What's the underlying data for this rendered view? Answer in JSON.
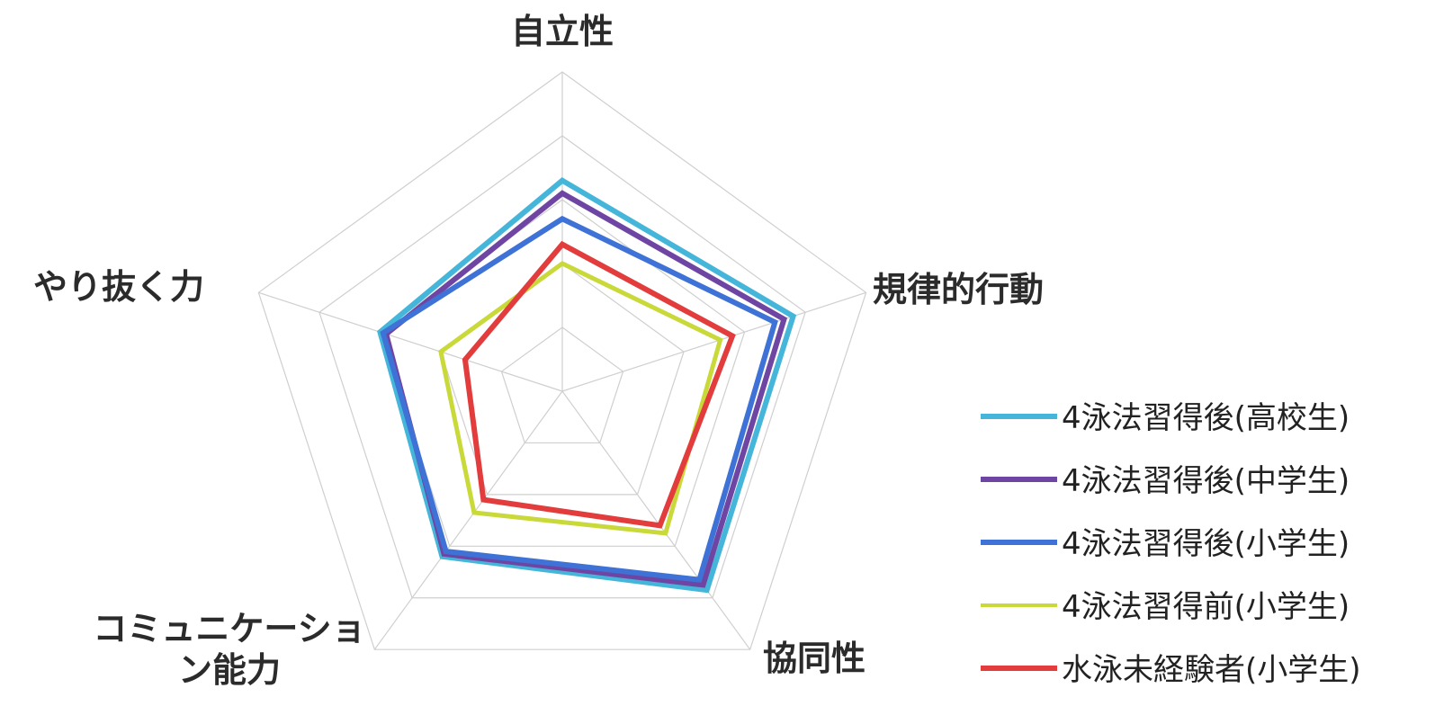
{
  "chart_data": {
    "type": "radar",
    "axes": [
      {
        "id": "jiritsu",
        "label_lines": [
          "自立性"
        ]
      },
      {
        "id": "kiritsu",
        "label_lines": [
          "規律的行動"
        ]
      },
      {
        "id": "kyodo",
        "label_lines": [
          "協同性"
        ]
      },
      {
        "id": "comm",
        "label_lines": [
          "コミュニケーショ",
          "ン能力"
        ]
      },
      {
        "id": "yarinuku",
        "label_lines": [
          "やり抜く力"
        ]
      }
    ],
    "range": [
      0,
      5
    ],
    "grid_levels": 5,
    "series": [
      {
        "name": "4泳法習得後(高校生)",
        "color": "#45b6d9",
        "values": [
          3.3,
          3.8,
          3.85,
          3.2,
          3.0
        ]
      },
      {
        "name": "4泳法習得後(中学生)",
        "color": "#6f45a3",
        "values": [
          3.1,
          3.65,
          3.75,
          3.15,
          2.9
        ]
      },
      {
        "name": "4泳法習得後(小学生)",
        "color": "#3f72d6",
        "values": [
          2.7,
          3.5,
          3.65,
          3.1,
          2.95
        ]
      },
      {
        "name": "4泳法習得前(小学生)",
        "color": "#c9d93a",
        "values": [
          2.0,
          2.6,
          2.75,
          2.35,
          2.0
        ]
      },
      {
        "name": "水泳未経験者(小学生)",
        "color": "#e23c3c",
        "values": [
          2.3,
          2.8,
          2.6,
          2.1,
          1.6
        ]
      }
    ],
    "legend_position": "bottom-right",
    "grid": true
  }
}
